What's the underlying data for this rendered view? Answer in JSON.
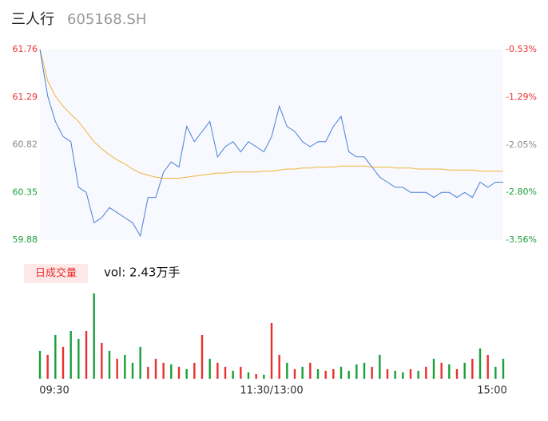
{
  "header": {
    "name": "三人行",
    "code": "605168.SH"
  },
  "chart_data": [
    {
      "type": "line",
      "xlim": [
        0,
        240
      ],
      "ylim": [
        59.88,
        61.76
      ],
      "yticks": [
        {
          "value": 61.76,
          "label": "61.76"
        },
        61.29,
        60.82,
        60.35,
        59.88
      ],
      "y2lim": [
        -3.56,
        -0.53
      ],
      "y2ticks": [
        {
          "value": -0.53,
          "label": "-0.53%"
        },
        {
          "value": -1.29,
          "label": "-1.29%"
        },
        {
          "value": -2.05,
          "label": "-2.05%"
        },
        {
          "value": -2.8,
          "label": "-2.80%"
        },
        {
          "value": -3.56,
          "label": "-3.56%"
        }
      ],
      "tick_colors": [
        "#e8302f",
        "#e8302f",
        "#888888",
        "#1a9e3a",
        "#1a9e3a"
      ],
      "x": [
        0,
        4,
        8,
        12,
        16,
        20,
        24,
        28,
        32,
        36,
        40,
        44,
        48,
        52,
        56,
        60,
        64,
        68,
        72,
        76,
        80,
        84,
        88,
        92,
        96,
        100,
        104,
        108,
        112,
        116,
        120,
        124,
        128,
        132,
        136,
        140,
        144,
        148,
        152,
        156,
        160,
        164,
        168,
        172,
        176,
        180,
        184,
        188,
        192,
        196,
        200,
        204,
        208,
        212,
        216,
        220,
        224,
        228,
        232,
        236,
        240
      ],
      "series": [
        {
          "color": "#4a7fd9",
          "values": [
            61.76,
            61.3,
            61.05,
            60.9,
            60.85,
            60.4,
            60.35,
            60.05,
            60.1,
            60.2,
            60.15,
            60.1,
            60.05,
            59.92,
            60.3,
            60.3,
            60.55,
            60.65,
            60.6,
            61.0,
            60.85,
            60.95,
            61.05,
            60.7,
            60.8,
            60.85,
            60.75,
            60.85,
            60.8,
            60.75,
            60.9,
            61.2,
            61.0,
            60.95,
            60.85,
            60.8,
            60.85,
            60.85,
            61.0,
            61.1,
            60.75,
            60.7,
            60.7,
            60.6,
            60.5,
            60.45,
            60.4,
            60.4,
            60.35,
            60.35,
            60.35,
            60.3,
            60.35,
            60.35,
            60.3,
            60.35,
            60.3,
            60.45,
            60.4,
            60.45,
            60.45
          ]
        },
        {
          "color": "#f0b43a",
          "values": [
            61.76,
            61.45,
            61.3,
            61.2,
            61.12,
            61.05,
            60.95,
            60.85,
            60.78,
            60.72,
            60.67,
            60.63,
            60.58,
            60.54,
            60.52,
            60.5,
            60.49,
            60.49,
            60.49,
            60.5,
            60.51,
            60.52,
            60.53,
            60.54,
            60.54,
            60.55,
            60.55,
            60.55,
            60.55,
            60.56,
            60.56,
            60.57,
            60.58,
            60.58,
            60.59,
            60.59,
            60.6,
            60.6,
            60.6,
            60.61,
            60.61,
            60.61,
            60.61,
            60.6,
            60.6,
            60.6,
            60.59,
            60.59,
            60.59,
            60.58,
            60.58,
            60.58,
            60.58,
            60.57,
            60.57,
            60.57,
            60.57,
            60.56,
            60.56,
            60.56,
            60.56
          ]
        }
      ]
    },
    {
      "type": "bar",
      "button": "日成交量",
      "title": "vol: 2.43万手",
      "xlim": [
        0,
        240
      ],
      "xticks": [
        {
          "value": 0,
          "label": "09:30"
        },
        {
          "value": 120,
          "label": "11:30/13:00"
        },
        {
          "value": 240,
          "label": "15:00"
        }
      ],
      "ylim": [
        0,
        110
      ],
      "x": [
        0,
        4,
        8,
        12,
        16,
        20,
        24,
        28,
        32,
        36,
        40,
        44,
        48,
        52,
        56,
        60,
        64,
        68,
        72,
        76,
        80,
        84,
        88,
        92,
        96,
        100,
        104,
        108,
        112,
        116,
        120,
        124,
        128,
        132,
        136,
        140,
        144,
        148,
        152,
        156,
        160,
        164,
        168,
        172,
        176,
        180,
        184,
        188,
        192,
        196,
        200,
        204,
        208,
        212,
        216,
        220,
        224,
        228,
        232,
        236,
        240
      ],
      "values": [
        35,
        30,
        55,
        40,
        60,
        50,
        60,
        107,
        45,
        35,
        25,
        30,
        20,
        40,
        15,
        25,
        20,
        18,
        15,
        12,
        20,
        55,
        25,
        20,
        15,
        10,
        15,
        8,
        6,
        5,
        70,
        30,
        20,
        12,
        15,
        20,
        12,
        10,
        12,
        15,
        10,
        18,
        20,
        15,
        30,
        12,
        10,
        8,
        12,
        10,
        15,
        25,
        20,
        18,
        12,
        20,
        25,
        38,
        30,
        15,
        25
      ],
      "colors": [
        "#1a9e3a",
        "#e8302f",
        "#1a9e3a",
        "#e8302f",
        "#1a9e3a",
        "#1a9e3a",
        "#e8302f",
        "#1a9e3a",
        "#e8302f",
        "#1a9e3a",
        "#e8302f",
        "#1a9e3a",
        "#1a9e3a",
        "#1a9e3a",
        "#e8302f",
        "#e8302f",
        "#e8302f",
        "#1a9e3a",
        "#e8302f",
        "#1a9e3a",
        "#e8302f",
        "#e8302f",
        "#1a9e3a",
        "#e8302f",
        "#e8302f",
        "#1a9e3a",
        "#e8302f",
        "#1a9e3a",
        "#e8302f",
        "#1a9e3a",
        "#e8302f",
        "#e8302f",
        "#1a9e3a",
        "#e8302f",
        "#1a9e3a",
        "#e8302f",
        "#1a9e3a",
        "#e8302f",
        "#e8302f",
        "#1a9e3a",
        "#1a9e3a",
        "#1a9e3a",
        "#1a9e3a",
        "#e8302f",
        "#1a9e3a",
        "#e8302f",
        "#1a9e3a",
        "#1a9e3a",
        "#e8302f",
        "#1a9e3a",
        "#e8302f",
        "#1a9e3a",
        "#e8302f",
        "#1a9e3a",
        "#e8302f",
        "#1a9e3a",
        "#e8302f",
        "#1a9e3a",
        "#e8302f",
        "#1a9e3a",
        "#1a9e3a"
      ]
    }
  ]
}
